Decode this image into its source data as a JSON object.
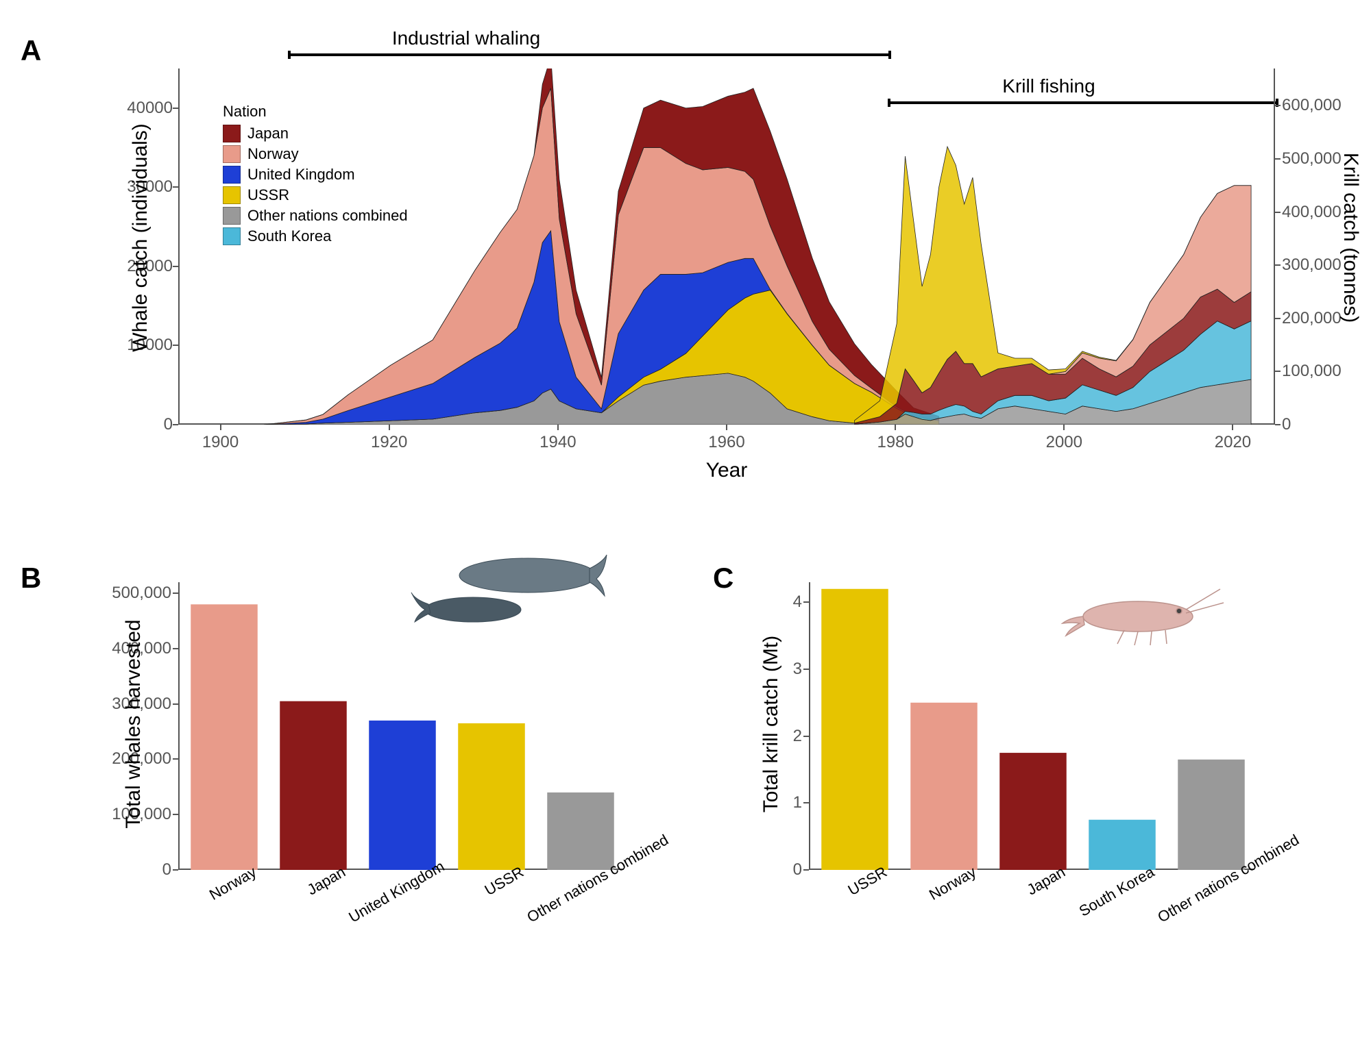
{
  "panelA": {
    "label": "A",
    "x_axis_label": "Year",
    "y_axis_left_label": "Whale catch (individuals)",
    "y_axis_right_label": "Krill catch (tonnes)",
    "x_range": [
      1895,
      2025
    ],
    "x_ticks": [
      1900,
      1920,
      1940,
      1960,
      1980,
      2000,
      2020
    ],
    "y_left_range": [
      0,
      45000
    ],
    "y_left_ticks": [
      0,
      10000,
      20000,
      30000,
      40000
    ],
    "y_left_tick_labels": [
      "0",
      "10000",
      "20000",
      "30000",
      "40000"
    ],
    "y_right_range": [
      0,
      670000
    ],
    "y_right_ticks": [
      0,
      100000,
      200000,
      300000,
      400000,
      500000,
      600000
    ],
    "y_right_tick_labels": [
      "0",
      "100,000",
      "200,000",
      "300,000",
      "400,000",
      "500,000",
      "600,000"
    ],
    "periods": [
      {
        "label": "Industrial whaling",
        "start": 1912,
        "end": 1982
      },
      {
        "label": "Krill fishing",
        "start": 1980,
        "end": 2022
      }
    ],
    "legend": {
      "title": "Nation",
      "items": [
        {
          "name": "Japan",
          "color": "#8b1a1a"
        },
        {
          "name": "Norway",
          "color": "#e89b8a"
        },
        {
          "name": "United Kingdom",
          "color": "#1e3fd6"
        },
        {
          "name": "USSR",
          "color": "#e6c400"
        },
        {
          "name": "Other nations combined",
          "color": "#999999"
        },
        {
          "name": "South Korea",
          "color": "#4bb8d9"
        }
      ]
    },
    "whaling_stacked": {
      "years": [
        1905,
        1910,
        1912,
        1915,
        1920,
        1925,
        1930,
        1933,
        1935,
        1937,
        1938,
        1939,
        1940,
        1942,
        1945,
        1947,
        1950,
        1952,
        1955,
        1957,
        1960,
        1962,
        1963,
        1965,
        1967,
        1970,
        1972,
        1975,
        1977,
        1980,
        1982,
        1985
      ],
      "series": [
        {
          "name": "Other",
          "color": "#999999",
          "values": [
            0,
            100,
            200,
            300,
            500,
            700,
            1500,
            1800,
            2200,
            3000,
            4000,
            4500,
            3000,
            2000,
            1500,
            3000,
            5000,
            5500,
            6000,
            6200,
            6500,
            6000,
            5500,
            4000,
            2000,
            1000,
            500,
            200,
            100,
            50,
            20,
            10
          ]
        },
        {
          "name": "USSR",
          "color": "#e6c400",
          "values": [
            0,
            0,
            0,
            0,
            0,
            0,
            0,
            0,
            0,
            0,
            0,
            0,
            0,
            0,
            0,
            500,
            1000,
            1500,
            3000,
            5000,
            8000,
            10000,
            11000,
            13000,
            12000,
            9000,
            7000,
            5000,
            4000,
            2000,
            1000,
            500
          ]
        },
        {
          "name": "UK",
          "color": "#1e3fd6",
          "values": [
            0,
            200,
            500,
            1500,
            3000,
            4500,
            7000,
            8500,
            10000,
            15000,
            19000,
            20000,
            10000,
            4000,
            500,
            8000,
            11000,
            12000,
            10000,
            8000,
            6000,
            5000,
            4500,
            100,
            50,
            30,
            20,
            10,
            5,
            2,
            1,
            0
          ]
        },
        {
          "name": "Norway",
          "color": "#e89b8a",
          "values": [
            0,
            300,
            600,
            2000,
            4000,
            5500,
            11000,
            14000,
            15000,
            16000,
            17000,
            18000,
            13000,
            8000,
            3000,
            15000,
            18000,
            16000,
            14000,
            13000,
            12000,
            11000,
            10000,
            8000,
            6000,
            3000,
            2000,
            1000,
            500,
            200,
            100,
            50
          ]
        },
        {
          "name": "Japan",
          "color": "#8b1a1a",
          "values": [
            0,
            0,
            0,
            0,
            0,
            0,
            0,
            0,
            0,
            0,
            3000,
            4000,
            5000,
            3000,
            1000,
            3000,
            5000,
            6000,
            7000,
            8000,
            9000,
            10000,
            11500,
            12000,
            11000,
            8000,
            6000,
            4000,
            3000,
            2000,
            1000,
            500
          ]
        }
      ]
    },
    "krill_stacked": {
      "years": [
        1975,
        1978,
        1980,
        1981,
        1982,
        1983,
        1984,
        1985,
        1986,
        1987,
        1988,
        1989,
        1990,
        1992,
        1994,
        1996,
        1998,
        2000,
        2002,
        2004,
        2006,
        2008,
        2010,
        2012,
        2014,
        2016,
        2018,
        2020,
        2022
      ],
      "series": [
        {
          "name": "Other",
          "color": "#999999",
          "values": [
            1000,
            5000,
            10000,
            20000,
            15000,
            10000,
            8000,
            12000,
            15000,
            18000,
            20000,
            15000,
            12000,
            30000,
            35000,
            30000,
            25000,
            20000,
            35000,
            30000,
            25000,
            30000,
            40000,
            50000,
            60000,
            70000,
            75000,
            80000,
            85000
          ]
        },
        {
          "name": "SouthKorea",
          "color": "#4bb8d9",
          "values": [
            0,
            0,
            0,
            5000,
            8000,
            10000,
            12000,
            15000,
            18000,
            20000,
            15000,
            10000,
            8000,
            15000,
            20000,
            25000,
            20000,
            30000,
            40000,
            35000,
            30000,
            40000,
            60000,
            70000,
            80000,
            100000,
            120000,
            100000,
            110000
          ]
        },
        {
          "name": "Japan",
          "color": "#8b1a1a",
          "values": [
            2000,
            10000,
            30000,
            80000,
            60000,
            40000,
            50000,
            70000,
            90000,
            100000,
            80000,
            90000,
            70000,
            60000,
            55000,
            60000,
            50000,
            45000,
            50000,
            40000,
            35000,
            40000,
            50000,
            55000,
            60000,
            70000,
            60000,
            50000,
            55000
          ]
        },
        {
          "name": "Norway",
          "color": "#e89b8a",
          "values": [
            0,
            0,
            0,
            0,
            0,
            0,
            0,
            0,
            0,
            0,
            0,
            0,
            0,
            0,
            0,
            0,
            0,
            5000,
            10000,
            20000,
            30000,
            50000,
            80000,
            100000,
            120000,
            150000,
            180000,
            220000,
            200000
          ]
        },
        {
          "name": "USSR",
          "color": "#e6c400",
          "values": [
            5000,
            30000,
            150000,
            400000,
            300000,
            200000,
            250000,
            350000,
            400000,
            350000,
            300000,
            350000,
            250000,
            30000,
            15000,
            10000,
            8000,
            5000,
            3000,
            2000,
            1000,
            500,
            200,
            100,
            50,
            30,
            20,
            10,
            5
          ]
        }
      ]
    }
  },
  "panelB": {
    "label": "B",
    "y_axis_label": "Total whales harvested",
    "y_range": [
      0,
      520000
    ],
    "y_ticks": [
      0,
      100000,
      200000,
      300000,
      400000,
      500000
    ],
    "y_tick_labels": [
      "0",
      "100,000",
      "200,000",
      "300,000",
      "400,000",
      "500,000"
    ],
    "bars": [
      {
        "category": "Norway",
        "value": 480000,
        "color": "#e89b8a"
      },
      {
        "category": "Japan",
        "value": 305000,
        "color": "#8b1a1a"
      },
      {
        "category": "United Kingdom",
        "value": 270000,
        "color": "#1e3fd6"
      },
      {
        "category": "USSR",
        "value": 265000,
        "color": "#e6c400"
      },
      {
        "category": "Other nations combined",
        "value": 140000,
        "color": "#999999"
      }
    ]
  },
  "panelC": {
    "label": "C",
    "y_axis_label": "Total krill catch (Mt)",
    "y_range": [
      0,
      4.3
    ],
    "y_ticks": [
      0,
      1,
      2,
      3,
      4
    ],
    "y_tick_labels": [
      "0",
      "1",
      "2",
      "3",
      "4"
    ],
    "bars": [
      {
        "category": "USSR",
        "value": 4.2,
        "color": "#e6c400"
      },
      {
        "category": "Norway",
        "value": 2.5,
        "color": "#e89b8a"
      },
      {
        "category": "Japan",
        "value": 1.75,
        "color": "#8b1a1a"
      },
      {
        "category": "South Korea",
        "value": 0.75,
        "color": "#4bb8d9"
      },
      {
        "category": "Other nations combined",
        "value": 1.65,
        "color": "#999999"
      }
    ]
  },
  "styling": {
    "background": "#ffffff",
    "axis_color": "#555555",
    "panel_label_fontsize": 42,
    "axis_label_fontsize": 30,
    "tick_fontsize": 24,
    "legend_fontsize": 22
  }
}
